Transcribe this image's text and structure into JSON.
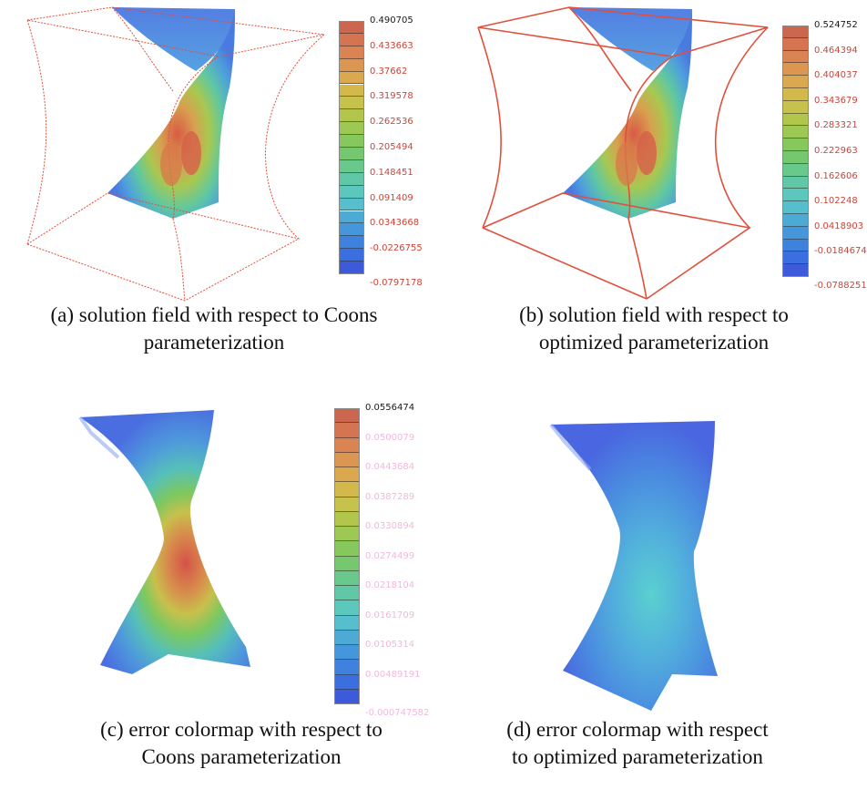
{
  "figure": {
    "panels": [
      {
        "id": "a",
        "caption_line1": "(a) solution field with respect to Coons",
        "caption_line2": "parameterization",
        "colorbar_labels": [
          "0.490705",
          "0.433663",
          "0.37662",
          "0.319578",
          "0.262536",
          "0.205494",
          "0.148451",
          "0.091409",
          "0.0343668",
          "-0.0226755",
          "-0.0797178"
        ]
      },
      {
        "id": "b",
        "caption_line1": "(b) solution field with respect to",
        "caption_line2": "optimized parameterization",
        "colorbar_labels": [
          "0.524752",
          "0.464394",
          "0.404037",
          "0.343679",
          "0.283321",
          "0.222963",
          "0.162606",
          "0.102248",
          "0.0418903",
          "-0.0184674",
          "-0.0788251"
        ]
      },
      {
        "id": "c",
        "caption_line1": "(c) error colormap with respect to",
        "caption_line2": "Coons parameterization",
        "colorbar_labels": [
          "0.0556474",
          "0.0500079",
          "0.0443684",
          "0.0387289",
          "0.0330894",
          "0.0274499",
          "0.0218104",
          "0.0161709",
          "0.0105314",
          "0.00489191",
          "-0.000747582"
        ]
      },
      {
        "id": "d",
        "caption_line1": "(d) error colormap with respect",
        "caption_line2": "to optimized parameterization"
      }
    ],
    "colors": {
      "wireframe": "#e0503c",
      "colormap": [
        "#3c50d8",
        "#3a78e0",
        "#48a0d8",
        "#5ac8c8",
        "#62c89a",
        "#7cc862",
        "#a8c84e",
        "#d0c04a",
        "#dca050",
        "#d87a52",
        "#c8604e"
      ]
    }
  }
}
